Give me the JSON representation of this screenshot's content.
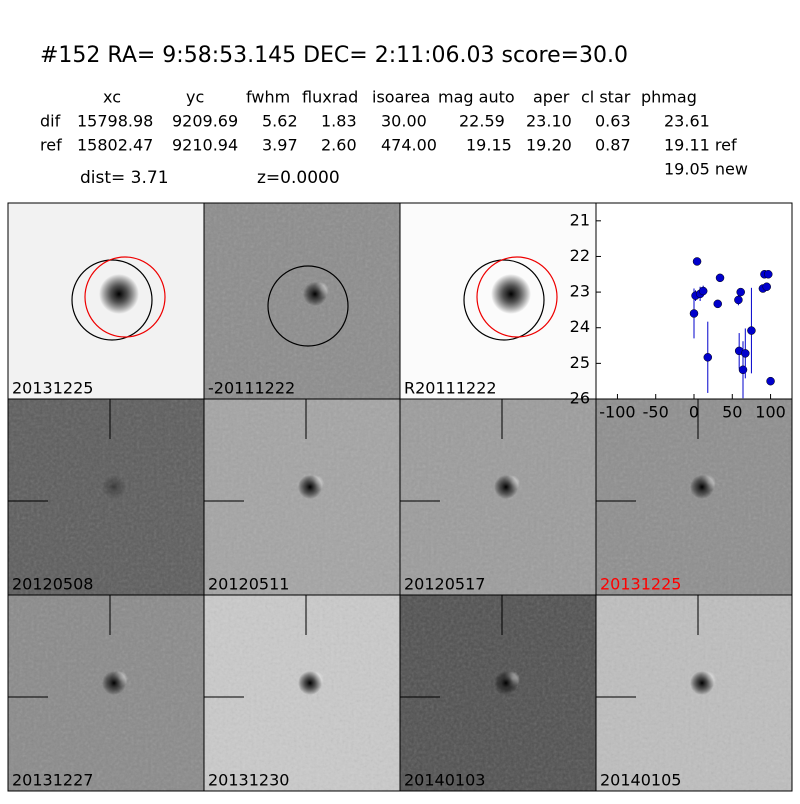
{
  "header": {
    "title": "#152   RA= 9:58:53.145 DEC= 2:11:06.03       score=30.0"
  },
  "table": {
    "columns": [
      "xc",
      "yc",
      "fwhm",
      "fluxrad",
      "isoarea",
      "mag auto",
      "aper",
      "cl star",
      "phmag"
    ],
    "rows": [
      [
        "dif",
        "15798.98",
        "9209.69",
        "5.62",
        "1.83",
        "30.00",
        "22.59",
        "23.10",
        "0.63",
        "23.61"
      ],
      [
        "ref",
        "15802.47",
        "9210.94",
        "3.97",
        "2.60",
        "474.00",
        "19.15",
        "19.20",
        "0.87",
        "19.11 ref"
      ]
    ],
    "extra": "19.05 new"
  },
  "info": {
    "dist": "dist=  3.71",
    "z": "z=0.0000"
  },
  "panels": [
    {
      "label": "20131225"
    },
    {
      "label": "-20111222"
    },
    {
      "label": "R20111222"
    },
    {
      "label": "20120508"
    },
    {
      "label": "20120511"
    },
    {
      "label": "20120517"
    },
    {
      "label": "20131225",
      "color": "#ff0000"
    },
    {
      "label": "20131227"
    },
    {
      "label": "20131230"
    },
    {
      "label": "20140103"
    },
    {
      "label": "20140105"
    }
  ],
  "chart_data": {
    "type": "scatter",
    "color": "#0000cc",
    "x": [
      0,
      4,
      2,
      8,
      12,
      18,
      31,
      34,
      58,
      61,
      59,
      64,
      67,
      75,
      90,
      92,
      97,
      95,
      100
    ],
    "values": [
      23.6,
      22.14,
      23.1,
      23.05,
      22.97,
      24.83,
      23.33,
      22.6,
      23.22,
      23.0,
      24.65,
      25.18,
      24.72,
      24.08,
      22.9,
      22.5,
      22.5,
      22.85,
      25.5
    ],
    "errors": [
      0.7,
      0.05,
      0.15,
      0.2,
      0.15,
      1.0,
      0.1,
      0.1,
      0.15,
      0.1,
      0.5,
      0.8,
      0.7,
      1.2,
      0.1,
      0.1,
      0.1,
      0.1,
      0.05
    ],
    "xlim": [
      -128,
      128
    ],
    "ylim": [
      26,
      20.5
    ],
    "xticks": [
      -100,
      -50,
      0,
      50,
      100
    ],
    "yticks": [
      21,
      22,
      23,
      24,
      25,
      26
    ]
  }
}
